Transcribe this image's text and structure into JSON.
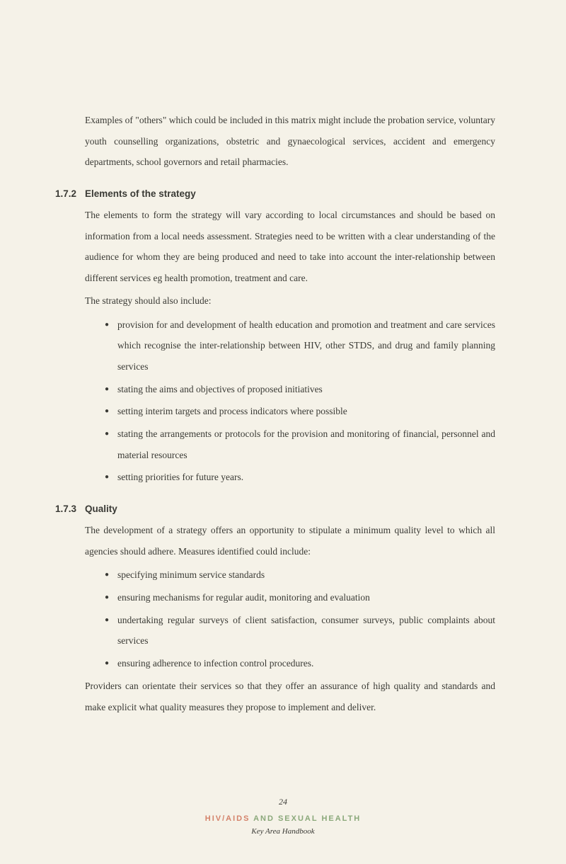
{
  "intro": "Examples of \"others\" which could be included in this matrix might include the probation service, voluntary youth counselling organizations, obstetric and gynaecological services, accident and emergency departments, school governors and retail pharmacies.",
  "sections": [
    {
      "number": "1.7.2",
      "title": "Elements of the strategy",
      "para1": "The elements to form the strategy will vary according to local circumstances and should be based on information from a local needs assessment. Strategies need to be written with a clear understanding of the audience for whom they are being produced and need to take into account the inter-relationship between different services eg health promotion, treatment and care.",
      "para2": "The strategy should also include:",
      "bullets": [
        "provision for and development of health education and promotion and treatment and care services which recognise the inter-relationship between HIV, other STDS, and drug and family planning services",
        "stating the aims and objectives of proposed initiatives",
        "setting interim targets and process indicators where possible",
        "stating the arrangements or protocols for the provision and monitoring of financial, personnel and material resources",
        "setting priorities for future years."
      ]
    },
    {
      "number": "1.7.3",
      "title": "Quality",
      "para1": "The development of a strategy offers an opportunity to stipulate a minimum quality level to which all agencies should adhere. Measures identified could include:",
      "bullets": [
        "specifying minimum service standards",
        "ensuring mechanisms for regular audit, monitoring and evaluation",
        "undertaking regular surveys of client satisfaction, consumer surveys, public complaints about services",
        "ensuring adherence to infection control procedures."
      ],
      "para_after": "Providers can orientate their services so that they offer an assurance of high quality and standards and make explicit what quality measures they propose to implement and deliver."
    }
  ],
  "footer": {
    "page": "24",
    "title_hiv": "HIV/AIDS",
    "title_rest": " AND SEXUAL HEALTH",
    "sub": "Key Area Handbook"
  },
  "colors": {
    "background": "#f5f2e8",
    "text": "#3a3a35",
    "accent_orange": "#d4826a",
    "accent_green": "#8aa87a"
  }
}
